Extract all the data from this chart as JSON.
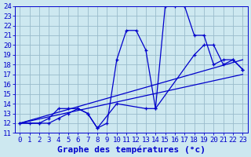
{
  "xlabel": "Graphe des températures (°c)",
  "xlim": [
    -0.5,
    23.5
  ],
  "ylim": [
    11,
    24
  ],
  "xticks": [
    0,
    1,
    2,
    3,
    4,
    5,
    6,
    7,
    8,
    9,
    10,
    11,
    12,
    13,
    14,
    15,
    16,
    17,
    18,
    19,
    20,
    21,
    22,
    23
  ],
  "yticks": [
    11,
    12,
    13,
    14,
    15,
    16,
    17,
    18,
    19,
    20,
    21,
    22,
    23,
    24
  ],
  "bg_color": "#cde8f0",
  "grid_color": "#99bbcc",
  "line_color": "#0000cc",
  "series1_x": [
    0,
    1,
    2,
    3,
    4,
    5,
    6,
    7,
    8,
    9,
    10,
    11,
    12,
    13,
    14,
    15,
    16,
    17,
    18,
    19,
    20,
    21,
    22,
    23
  ],
  "series1_y": [
    12,
    12,
    12,
    12,
    12.5,
    13,
    13.5,
    13,
    11.5,
    12,
    18.5,
    21.5,
    21.5,
    19.5,
    13.5,
    24,
    24,
    24,
    21,
    21,
    18,
    18.5,
    18.5,
    17.5
  ],
  "series2_x": [
    0,
    2,
    3,
    4,
    5,
    6,
    7,
    8,
    10,
    13,
    14,
    18,
    19,
    20,
    21,
    22,
    23
  ],
  "series2_y": [
    12,
    12,
    12.5,
    13.5,
    13.5,
    13.5,
    13,
    11.5,
    14,
    13.5,
    13.5,
    19,
    20,
    20,
    18,
    18.5,
    17.5
  ],
  "series3_x": [
    0,
    23
  ],
  "series3_y": [
    12,
    18.5
  ],
  "series4_x": [
    0,
    23
  ],
  "series4_y": [
    12,
    17
  ],
  "fontsize_xlabel": 8,
  "tick_fontsize": 6.5
}
